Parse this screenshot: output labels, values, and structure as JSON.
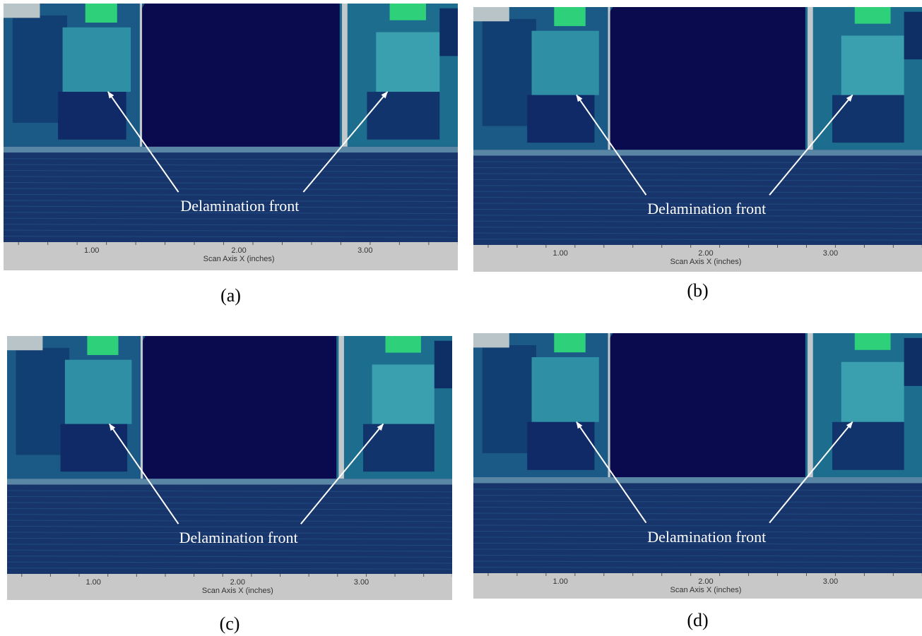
{
  "panels": [
    {
      "caption": "(a)",
      "annotation": "Delamination front",
      "axis_ticks": [
        "1.00",
        "2.00",
        "3.00"
      ],
      "axis_label": "Scan Axis X (inches)"
    },
    {
      "caption": "(b)",
      "annotation": "Delamination front",
      "axis_ticks": [
        "1.00",
        "2.00",
        "3.00"
      ],
      "axis_label": "Scan Axis X (inches)"
    },
    {
      "caption": "(c)",
      "annotation": "Delamination front",
      "axis_ticks": [
        "1.00",
        "2.00",
        "3.00"
      ],
      "axis_label": "Scan Axis X (inches)"
    },
    {
      "caption": "(d)",
      "annotation": "Delamination front",
      "axis_ticks": [
        "1.00",
        "2.00",
        "3.00"
      ],
      "axis_label": "Scan Axis X (inches)"
    }
  ]
}
